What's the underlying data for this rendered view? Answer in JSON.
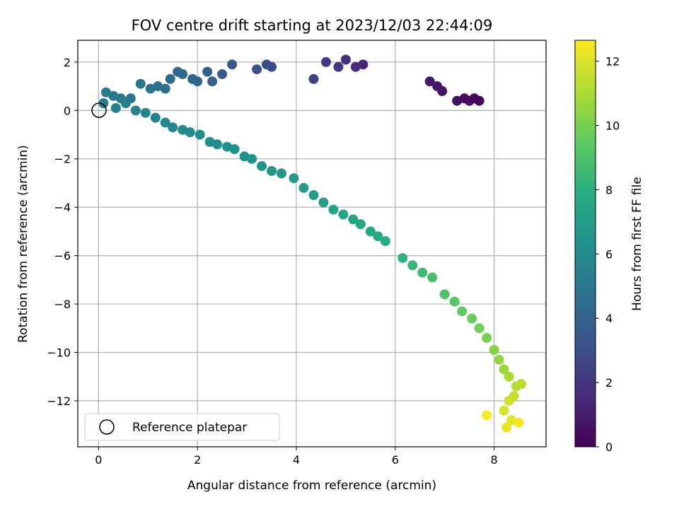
{
  "chart_data": {
    "type": "scatter",
    "title": "FOV centre drift starting at 2023/12/03 22:44:09",
    "xlabel": "Angular distance from reference (arcmin)",
    "ylabel": "Rotation from reference (arcmin)",
    "xlim": [
      -0.42,
      9.05
    ],
    "ylim": [
      -13.9,
      2.9
    ],
    "xticks": [
      0,
      2,
      4,
      6,
      8
    ],
    "yticks": [
      2,
      0,
      -2,
      -4,
      -6,
      -8,
      -10,
      -12
    ],
    "grid": true,
    "legend": {
      "placement": "lower-left",
      "entries": [
        "Reference platepar"
      ]
    },
    "colorbar": {
      "label": "Hours from first FF file",
      "min": 0,
      "max": 12.65,
      "ticks": [
        0,
        2,
        4,
        6,
        8,
        10,
        12
      ],
      "colormap": "viridis"
    },
    "reference_point": {
      "x": 0,
      "y": 0
    },
    "series": [
      {
        "points": [
          [
            7.7,
            0.4,
            0.1
          ],
          [
            7.6,
            0.5,
            0.2
          ],
          [
            7.5,
            0.4,
            0.3
          ],
          [
            7.4,
            0.5,
            0.4
          ],
          [
            7.25,
            0.4,
            0.5
          ],
          [
            6.95,
            0.8,
            0.6
          ],
          [
            6.85,
            1.0,
            0.7
          ],
          [
            6.7,
            1.2,
            0.8
          ],
          [
            5.35,
            1.9,
            1.4
          ],
          [
            5.2,
            1.8,
            1.6
          ],
          [
            5.0,
            2.1,
            1.8
          ],
          [
            4.85,
            1.8,
            2.0
          ],
          [
            4.6,
            2.0,
            2.2
          ],
          [
            4.35,
            1.3,
            2.5
          ],
          [
            3.5,
            1.8,
            2.9
          ],
          [
            3.4,
            1.9,
            3.0
          ],
          [
            3.2,
            1.7,
            3.2
          ],
          [
            2.7,
            1.9,
            3.4
          ],
          [
            2.5,
            1.5,
            3.6
          ],
          [
            2.3,
            1.2,
            3.8
          ],
          [
            2.2,
            1.6,
            3.9
          ],
          [
            2.0,
            1.2,
            4.0
          ],
          [
            1.9,
            1.3,
            4.1
          ],
          [
            1.7,
            1.5,
            4.2
          ],
          [
            1.6,
            1.6,
            4.3
          ],
          [
            1.45,
            1.3,
            4.4
          ],
          [
            1.35,
            0.9,
            4.5
          ],
          [
            1.2,
            1.0,
            4.6
          ],
          [
            1.05,
            0.9,
            4.7
          ],
          [
            0.85,
            1.1,
            4.8
          ],
          [
            0.65,
            0.5,
            4.9
          ],
          [
            0.45,
            0.5,
            5.0
          ],
          [
            0.3,
            0.6,
            5.1
          ],
          [
            0.15,
            0.75,
            5.2
          ],
          [
            0.1,
            0.3,
            5.3
          ],
          [
            0.35,
            0.1,
            5.4
          ],
          [
            0.55,
            0.3,
            5.5
          ],
          [
            0.75,
            0.0,
            5.6
          ],
          [
            0.95,
            -0.1,
            5.65
          ],
          [
            1.15,
            -0.3,
            5.7
          ],
          [
            1.35,
            -0.5,
            5.75
          ],
          [
            1.5,
            -0.7,
            5.8
          ],
          [
            1.7,
            -0.8,
            5.9
          ],
          [
            1.85,
            -0.9,
            6.0
          ],
          [
            2.05,
            -1.0,
            6.1
          ],
          [
            2.25,
            -1.3,
            6.15
          ],
          [
            2.4,
            -1.4,
            6.2
          ],
          [
            2.6,
            -1.5,
            6.3
          ],
          [
            2.75,
            -1.6,
            6.35
          ],
          [
            2.95,
            -1.9,
            6.4
          ],
          [
            3.1,
            -2.0,
            6.5
          ],
          [
            3.3,
            -2.3,
            6.55
          ],
          [
            3.5,
            -2.5,
            6.6
          ],
          [
            3.7,
            -2.6,
            6.7
          ],
          [
            3.95,
            -2.8,
            6.8
          ],
          [
            4.15,
            -3.2,
            6.9
          ],
          [
            4.35,
            -3.5,
            7.0
          ],
          [
            4.55,
            -3.8,
            7.1
          ],
          [
            4.75,
            -4.1,
            7.2
          ],
          [
            4.95,
            -4.3,
            7.3
          ],
          [
            5.15,
            -4.5,
            7.4
          ],
          [
            5.3,
            -4.7,
            7.5
          ],
          [
            5.5,
            -5.0,
            7.55
          ],
          [
            5.65,
            -5.2,
            7.6
          ],
          [
            5.8,
            -5.4,
            7.7
          ],
          [
            6.15,
            -6.1,
            8.2
          ],
          [
            6.35,
            -6.4,
            8.4
          ],
          [
            6.55,
            -6.7,
            8.6
          ],
          [
            6.75,
            -6.9,
            8.8
          ],
          [
            7.0,
            -7.6,
            9.1
          ],
          [
            7.2,
            -7.9,
            9.3
          ],
          [
            7.35,
            -8.3,
            9.5
          ],
          [
            7.55,
            -8.6,
            9.7
          ],
          [
            7.7,
            -9.0,
            9.9
          ],
          [
            7.85,
            -9.4,
            10.1
          ],
          [
            8.0,
            -9.9,
            10.3
          ],
          [
            8.1,
            -10.3,
            10.5
          ],
          [
            8.2,
            -10.7,
            10.7
          ],
          [
            8.3,
            -11.0,
            10.9
          ],
          [
            8.45,
            -11.4,
            11.1
          ],
          [
            8.55,
            -11.3,
            11.3
          ],
          [
            8.4,
            -11.8,
            11.5
          ],
          [
            8.3,
            -12.0,
            11.7
          ],
          [
            8.2,
            -12.4,
            11.9
          ],
          [
            8.35,
            -12.8,
            12.1
          ],
          [
            8.25,
            -13.1,
            12.3
          ],
          [
            8.5,
            -12.9,
            12.45
          ],
          [
            7.85,
            -12.6,
            12.6
          ]
        ]
      }
    ]
  }
}
